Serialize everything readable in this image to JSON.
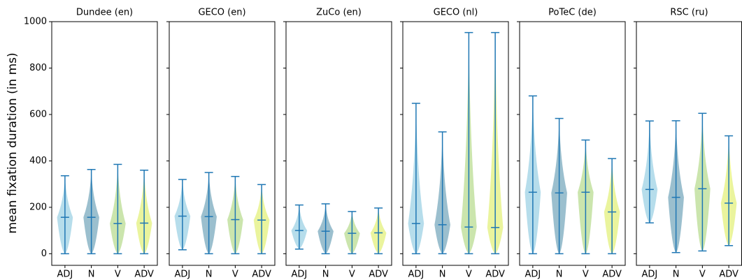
{
  "chart_data": [
    {
      "type": "violin",
      "title": "Dundee (en)",
      "ylabel": "mean fixation duration (in ms)",
      "ylim": [
        -50,
        1000
      ],
      "yticks": [
        0,
        200,
        400,
        600,
        800,
        1000
      ],
      "categories": [
        "ADJ",
        "N",
        "V",
        "ADV"
      ],
      "colors": [
        "#9dd1e4",
        "#7aa9bd",
        "#b9dc91",
        "#e3f07c"
      ],
      "line_color": "#1f77b4",
      "min": [
        0,
        0,
        0,
        0
      ],
      "median": [
        157,
        157,
        130,
        132
      ],
      "max": [
        336,
        363,
        385,
        360
      ]
    },
    {
      "type": "violin",
      "title": "GECO (en)",
      "categories": [
        "ADJ",
        "N",
        "V",
        "ADV"
      ],
      "colors": [
        "#9dd1e4",
        "#7aa9bd",
        "#b9dc91",
        "#e3f07c"
      ],
      "line_color": "#1f77b4",
      "min": [
        17,
        0,
        0,
        0
      ],
      "median": [
        162,
        160,
        147,
        145
      ],
      "max": [
        320,
        350,
        333,
        298
      ]
    },
    {
      "type": "violin",
      "title": "ZuCo (en)",
      "categories": [
        "ADJ",
        "N",
        "V",
        "ADV"
      ],
      "colors": [
        "#9dd1e4",
        "#7aa9bd",
        "#b9dc91",
        "#e3f07c"
      ],
      "line_color": "#1f77b4",
      "min": [
        20,
        0,
        0,
        0
      ],
      "median": [
        100,
        97,
        88,
        90
      ],
      "max": [
        210,
        215,
        182,
        197
      ]
    },
    {
      "type": "violin",
      "title": "GECO (nl)",
      "categories": [
        "ADJ",
        "N",
        "V",
        "ADV"
      ],
      "colors": [
        "#9dd1e4",
        "#7aa9bd",
        "#b9dc91",
        "#e3f07c"
      ],
      "line_color": "#1f77b4",
      "min": [
        0,
        0,
        0,
        0
      ],
      "median": [
        130,
        125,
        115,
        113
      ],
      "max": [
        648,
        525,
        953,
        953
      ]
    },
    {
      "type": "violin",
      "title": "PoTeC (de)",
      "categories": [
        "ADJ",
        "N",
        "V",
        "ADV"
      ],
      "colors": [
        "#9dd1e4",
        "#7aa9bd",
        "#b9dc91",
        "#e3f07c"
      ],
      "line_color": "#1f77b4",
      "min": [
        0,
        0,
        0,
        0
      ],
      "median": [
        265,
        262,
        265,
        180
      ],
      "max": [
        680,
        583,
        490,
        410
      ]
    },
    {
      "type": "violin",
      "title": "RSC (ru)",
      "categories": [
        "ADJ",
        "N",
        "V",
        "ADV"
      ],
      "colors": [
        "#9dd1e4",
        "#7aa9bd",
        "#b9dc91",
        "#e3f07c"
      ],
      "line_color": "#1f77b4",
      "min": [
        133,
        5,
        12,
        35
      ],
      "median": [
        277,
        243,
        280,
        218
      ],
      "max": [
        572,
        573,
        605,
        508
      ]
    }
  ]
}
